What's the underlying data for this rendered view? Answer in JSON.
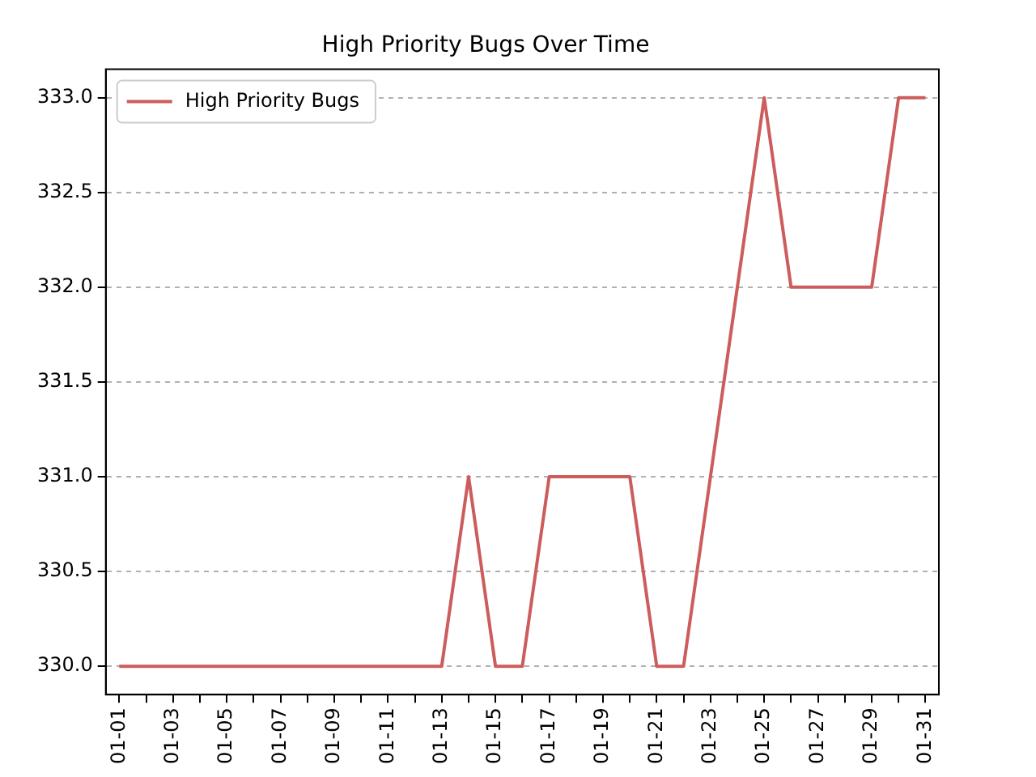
{
  "chart_data": {
    "type": "line",
    "title": "High Priority Bugs Over Time",
    "categories": [
      "01-01",
      null,
      "01-03",
      null,
      "01-05",
      null,
      "01-07",
      null,
      "01-09",
      null,
      "01-11",
      null,
      "01-13",
      null,
      "01-15",
      null,
      "01-17",
      null,
      "01-19",
      null,
      "01-21",
      null,
      "01-23",
      null,
      "01-25",
      null,
      "01-27",
      null,
      "01-29",
      null,
      "01-31"
    ],
    "series": [
      {
        "name": "High Priority Bugs",
        "color": "#cd5c5c",
        "values": [
          330,
          330,
          330,
          330,
          330,
          330,
          330,
          330,
          330,
          330,
          330,
          330,
          330,
          331,
          330,
          330,
          331,
          331,
          331,
          331,
          330,
          330,
          331,
          332,
          333,
          332,
          332,
          332,
          332,
          333,
          333
        ]
      }
    ],
    "ylim": [
      329.85,
      333.15
    ],
    "yticks": [
      {
        "value": 330,
        "label": "330.0"
      },
      {
        "value": 330.5,
        "label": "330.5"
      },
      {
        "value": 331,
        "label": "331.0"
      },
      {
        "value": 331.5,
        "label": "331.5"
      },
      {
        "value": 332,
        "label": "332.0"
      },
      {
        "value": 332.5,
        "label": "332.5"
      },
      {
        "value": 333,
        "label": "333.0"
      }
    ],
    "grid": "y",
    "legend": "top left",
    "marker": "none"
  }
}
